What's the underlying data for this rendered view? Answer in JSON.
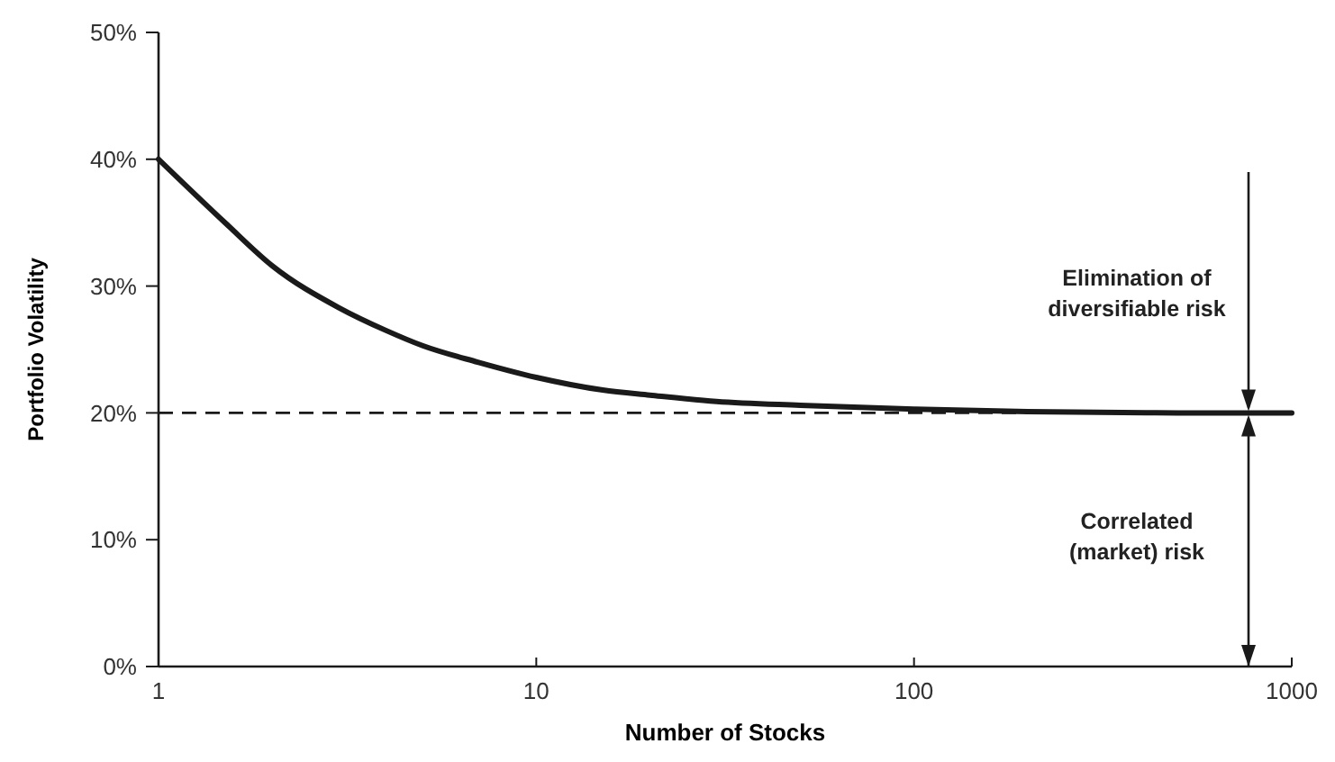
{
  "chart_data": {
    "type": "line",
    "xlabel": "Number of Stocks",
    "ylabel": "Portfolio Volatility",
    "x": [
      1,
      1.5,
      2,
      3,
      4,
      5,
      7,
      10,
      15,
      20,
      30,
      50,
      100,
      200,
      500,
      1000
    ],
    "series": [
      {
        "color": "#1a1a1a",
        "values": [
          40,
          35,
          31.6,
          28.3,
          26.5,
          25.3,
          24,
          22.8,
          21.8,
          21.4,
          20.9,
          20.6,
          20.3,
          20.1,
          20,
          20
        ]
      }
    ],
    "log": "x",
    "xlim": [
      1,
      1000
    ],
    "xticks": [
      1,
      10,
      100,
      1000
    ],
    "ylim": [
      0,
      50
    ],
    "yticks": [
      {
        "value": 0,
        "label": "0%"
      },
      {
        "value": 10,
        "label": "10%"
      },
      {
        "value": 20,
        "label": "20%"
      },
      {
        "value": 30,
        "label": "30%"
      },
      {
        "value": 40,
        "label": "40%"
      },
      {
        "value": 50,
        "label": "50%"
      }
    ],
    "grid": false,
    "marker": "none",
    "line_style": "solid",
    "ref_lines": [
      {
        "axis": "y",
        "value": 20,
        "label": null,
        "line_style": "dashed",
        "color": "#1a1a1a"
      }
    ],
    "annotations": [
      "Elimination of diversifiable risk",
      "Correlated (market) risk"
    ]
  }
}
